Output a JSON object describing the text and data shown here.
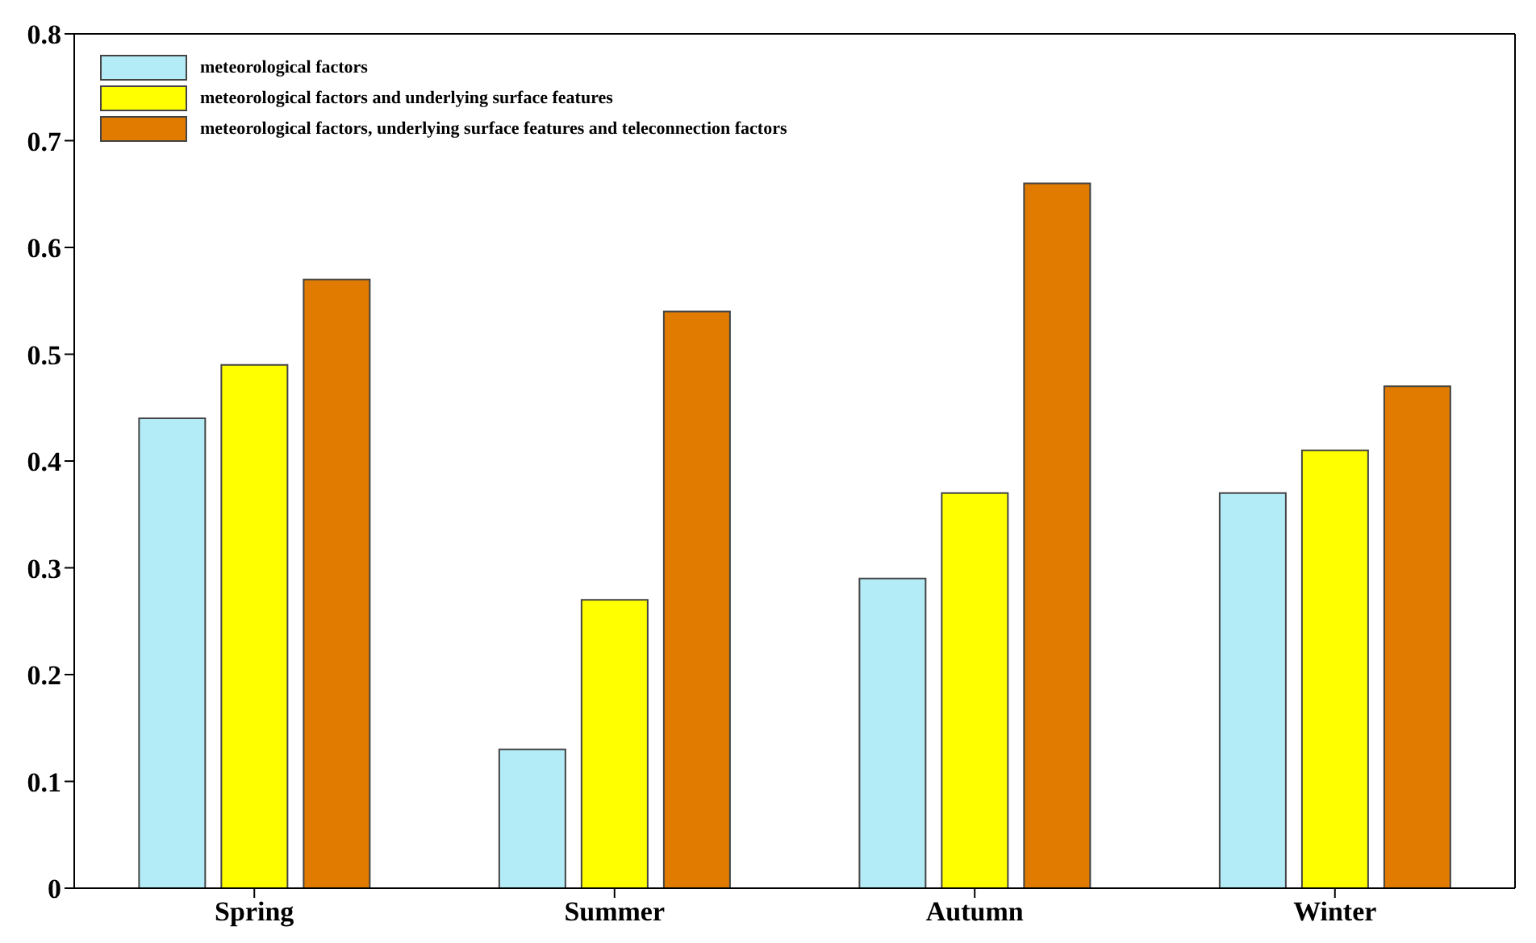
{
  "chart_data": {
    "type": "bar",
    "categories": [
      "Spring",
      "Summer",
      "Autumn",
      "Winter"
    ],
    "series": [
      {
        "name": "meteorological factors",
        "color": "#b3ecf7",
        "values": [
          0.44,
          0.13,
          0.29,
          0.37
        ]
      },
      {
        "name": "meteorological factors and underlying surface features",
        "color": "#ffff00",
        "values": [
          0.49,
          0.27,
          0.37,
          0.41
        ]
      },
      {
        "name": "meteorological factors, underlying surface features and teleconnection factors",
        "color": "#e07b00",
        "values": [
          0.57,
          0.54,
          0.66,
          0.47
        ]
      }
    ],
    "ylim": [
      0,
      0.8
    ],
    "yticks": [
      0,
      0.1,
      0.2,
      0.3,
      0.4,
      0.5,
      0.6,
      0.7,
      0.8
    ],
    "grid": false,
    "legend": "top left"
  }
}
